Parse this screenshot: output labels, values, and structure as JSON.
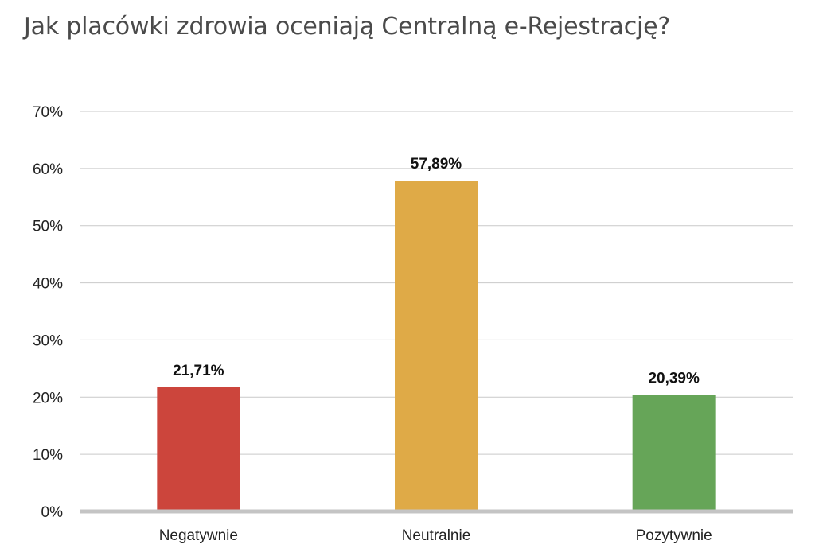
{
  "chart_data": {
    "type": "bar",
    "title": "Jak placówki zdrowia oceniają Centralną e-Rejestrację?",
    "categories": [
      "Negatywnie",
      "Neutralnie",
      "Pozytywnie"
    ],
    "values": [
      21.71,
      57.89,
      20.39
    ],
    "data_labels": [
      "21,71%",
      "57,89%",
      "20,39%"
    ],
    "colors": [
      "#cc453c",
      "#dfaa47",
      "#66a558"
    ],
    "ylim": [
      0,
      70
    ],
    "yticks": [
      0,
      10,
      20,
      30,
      40,
      50,
      60,
      70
    ],
    "ytick_labels": [
      "0%",
      "10%",
      "20%",
      "30%",
      "40%",
      "50%",
      "60%",
      "70%"
    ],
    "grid": true,
    "xlabel": "",
    "ylabel": ""
  }
}
